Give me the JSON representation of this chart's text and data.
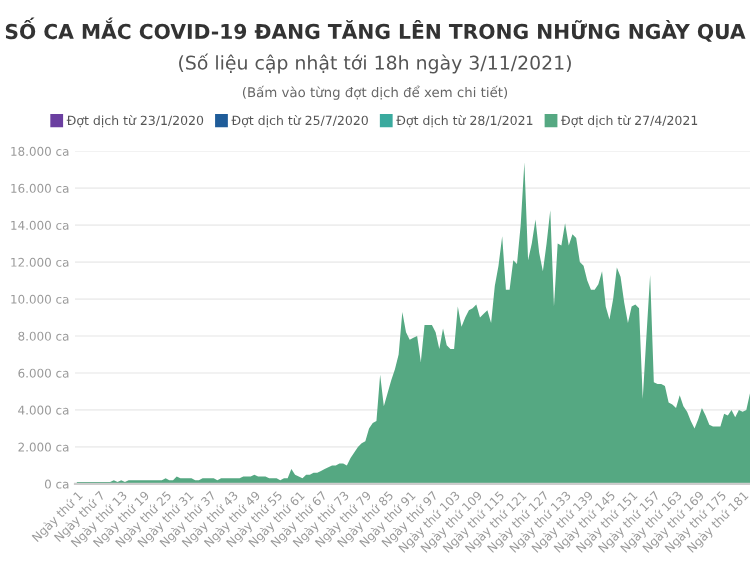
{
  "chart_data": {
    "type": "area",
    "title": "SỐ CA MẮC COVID-19 ĐANG TĂNG LÊN TRONG NHỮNG NGÀY QUA",
    "subtitle": "(Số liệu cập nhật tới 18h ngày 3/11/2021)",
    "annotations": [
      "(Bấm vào từng đợt dịch để xem chi tiết)"
    ],
    "categories": [
      "Ngày thứ 1",
      null,
      null,
      null,
      null,
      null,
      "Ngày thứ 7",
      null,
      null,
      null,
      null,
      null,
      "Ngày thứ 13",
      null,
      null,
      null,
      null,
      null,
      "Ngày thứ 19",
      null,
      null,
      null,
      null,
      null,
      "Ngày thứ 25",
      null,
      null,
      null,
      null,
      null,
      "Ngày thứ 31",
      null,
      null,
      null,
      null,
      null,
      "Ngày thứ 37",
      null,
      null,
      null,
      null,
      null,
      "Ngày thứ 43",
      null,
      null,
      null,
      null,
      null,
      "Ngày thứ 49",
      null,
      null,
      null,
      null,
      null,
      "Ngày thứ 55",
      null,
      null,
      null,
      null,
      null,
      "Ngày thứ 61",
      null,
      null,
      null,
      null,
      null,
      "Ngày thứ 67",
      null,
      null,
      null,
      null,
      null,
      "Ngày thứ 73",
      null,
      null,
      null,
      null,
      null,
      "Ngày thứ 79",
      null,
      null,
      null,
      null,
      null,
      "Ngày thứ 85",
      null,
      null,
      null,
      null,
      null,
      "Ngày thứ 91",
      null,
      null,
      null,
      null,
      null,
      "Ngày thứ 97",
      null,
      null,
      null,
      null,
      null,
      "Ngày thứ 103",
      null,
      null,
      null,
      null,
      null,
      "Ngày thứ 109",
      null,
      null,
      null,
      null,
      null,
      "Ngày thứ 115",
      null,
      null,
      null,
      null,
      null,
      "Ngày thứ 121",
      null,
      null,
      null,
      null,
      null,
      "Ngày thứ 127",
      null,
      null,
      null,
      null,
      null,
      "Ngày thứ 133",
      null,
      null,
      null,
      null,
      null,
      "Ngày thứ 139",
      null,
      null,
      null,
      null,
      null,
      "Ngày thứ 145",
      null,
      null,
      null,
      null,
      null,
      "Ngày thứ 151",
      null,
      null,
      null,
      null,
      null,
      "Ngày thứ 157",
      null,
      null,
      null,
      null,
      null,
      "Ngày thứ 163",
      null,
      null,
      null,
      null,
      null,
      "Ngày thứ 169",
      null,
      null,
      null,
      null,
      null,
      "Ngày thứ 175",
      null,
      null,
      null,
      null,
      null,
      "Ngày thứ 181",
      null,
      null
    ],
    "series": [
      {
        "name": "Đợt dịch từ 23/1/2020",
        "color": "#6b3fa0",
        "values": [
          null,
          null,
          null,
          null,
          null,
          null,
          null,
          null,
          null,
          null,
          null,
          null,
          null,
          null,
          null,
          null,
          null,
          null,
          null,
          null,
          null,
          null,
          null,
          null,
          null,
          null,
          null,
          null,
          null,
          null,
          null,
          null,
          null,
          null,
          null,
          null,
          null,
          null,
          null,
          null,
          null,
          null,
          null,
          null,
          null,
          null,
          null,
          null,
          null,
          null,
          null,
          null,
          null,
          null,
          null,
          null,
          null,
          null,
          null,
          null,
          null,
          null,
          null,
          null,
          null,
          null,
          null,
          null,
          null,
          null,
          null,
          null,
          null,
          null,
          null,
          null,
          null,
          null,
          null,
          null,
          null,
          null,
          null,
          null,
          null,
          null,
          null,
          null,
          null,
          null,
          null,
          null,
          null,
          null,
          null,
          null,
          null,
          null,
          null,
          null,
          null,
          null,
          null,
          null,
          null,
          null,
          null,
          null,
          null,
          null,
          null,
          null,
          null,
          null,
          null,
          null,
          null,
          null,
          null,
          null,
          null,
          null,
          null,
          null,
          null,
          null,
          null,
          null,
          null,
          null,
          null,
          null,
          null,
          null,
          null,
          null,
          null,
          null,
          null,
          null,
          null,
          null,
          null,
          null,
          null,
          null,
          null,
          null,
          null,
          null,
          null,
          null,
          null,
          null,
          null,
          null,
          null,
          null,
          null,
          null,
          null,
          null,
          null,
          null,
          null,
          null,
          null,
          null,
          null,
          null,
          null,
          null,
          null,
          null,
          null,
          null,
          null,
          null,
          null,
          null,
          null,
          null,
          null
        ]
      },
      {
        "name": "Đợt dịch từ 25/7/2020",
        "color": "#1f5c99",
        "values": [
          null,
          null,
          null,
          null,
          null,
          null,
          null,
          null,
          null,
          null,
          null,
          null,
          null,
          null,
          null,
          null,
          null,
          null,
          null,
          null,
          null,
          null,
          null,
          null,
          null,
          null,
          null,
          null,
          null,
          null,
          null,
          null,
          null,
          null,
          null,
          null,
          null,
          null,
          null,
          null,
          null,
          null,
          null,
          null,
          null,
          null,
          null,
          null,
          null,
          null,
          null,
          null,
          null,
          null,
          null,
          null,
          null,
          null,
          null,
          null,
          null,
          null,
          null,
          null,
          null,
          null,
          null,
          null,
          null,
          null,
          null,
          null,
          null,
          null,
          null,
          null,
          null,
          null,
          null,
          null,
          null,
          null,
          null,
          null,
          null,
          null,
          null,
          null,
          null,
          null,
          null,
          null,
          null,
          null,
          null,
          null,
          null,
          null,
          null,
          null,
          null,
          null,
          null,
          null,
          null,
          null,
          null,
          null,
          null,
          null,
          null,
          null,
          null,
          null,
          null,
          null,
          null,
          null,
          null,
          null,
          null,
          null,
          null,
          null,
          null,
          null,
          null,
          null,
          null,
          null,
          null,
          null,
          null,
          null,
          null,
          null,
          null,
          null,
          null,
          null,
          null,
          null,
          null,
          null,
          null,
          null,
          null,
          null,
          null,
          null,
          null,
          null,
          null,
          null,
          null,
          null,
          null,
          null,
          null,
          null,
          null,
          null,
          null,
          null,
          null,
          null,
          null,
          null,
          null,
          null,
          null,
          null,
          null,
          null,
          null,
          null,
          null,
          null,
          null,
          null,
          null,
          null,
          null
        ]
      },
      {
        "name": "Đợt dịch từ 28/1/2021",
        "color": "#3aaa9e",
        "values": [
          null,
          null,
          null,
          null,
          null,
          null,
          null,
          null,
          null,
          null,
          null,
          null,
          null,
          null,
          null,
          null,
          null,
          null,
          null,
          null,
          null,
          null,
          null,
          null,
          null,
          null,
          null,
          null,
          null,
          null,
          null,
          null,
          null,
          null,
          null,
          null,
          null,
          null,
          null,
          null,
          null,
          null,
          null,
          null,
          null,
          null,
          null,
          null,
          null,
          null,
          null,
          null,
          null,
          null,
          null,
          null,
          null,
          null,
          null,
          null,
          null,
          null,
          null,
          null,
          null,
          null,
          null,
          null,
          null,
          null,
          null,
          null,
          null,
          null,
          null,
          null,
          null,
          null,
          null,
          null,
          null,
          null,
          null,
          null,
          null,
          null,
          null,
          null,
          null,
          null,
          null,
          null,
          null,
          null,
          null,
          null,
          null,
          null,
          null,
          null,
          null,
          null,
          null,
          null,
          null,
          null,
          null,
          null,
          null,
          null,
          null,
          null,
          null,
          null,
          null,
          null,
          null,
          null,
          null,
          null,
          null,
          null,
          null,
          null,
          null,
          null,
          null,
          null,
          null,
          null,
          null,
          null,
          null,
          null,
          null,
          null,
          null,
          null,
          null,
          null,
          null,
          null,
          null,
          null,
          null,
          null,
          null,
          null,
          null,
          null,
          null,
          null,
          null,
          null,
          null,
          null,
          null,
          null,
          null,
          null,
          null,
          null,
          null,
          null,
          null,
          null,
          null,
          null,
          null,
          null,
          null,
          null,
          null,
          null,
          null,
          null,
          null,
          null,
          null,
          null,
          null,
          null,
          null
        ]
      },
      {
        "name": "Đợt dịch từ 27/4/2021",
        "color": "#55a882",
        "values": [
          100,
          100,
          100,
          100,
          100,
          100,
          100,
          100,
          100,
          100,
          200,
          100,
          200,
          100,
          200,
          200,
          200,
          200,
          200,
          200,
          200,
          200,
          200,
          200,
          300,
          200,
          200,
          400,
          300,
          300,
          300,
          300,
          200,
          200,
          300,
          300,
          300,
          300,
          200,
          300,
          300,
          300,
          300,
          300,
          300,
          400,
          400,
          400,
          500,
          400,
          400,
          400,
          300,
          300,
          300,
          200,
          300,
          300,
          800,
          500,
          400,
          300,
          500,
          500,
          600,
          600,
          700,
          800,
          900,
          1000,
          1000,
          1100,
          1100,
          1000,
          1400,
          1700,
          2000,
          2200,
          2300,
          3000,
          3300,
          3400,
          5900,
          4200,
          4900,
          5600,
          6200,
          7000,
          9300,
          8200,
          7800,
          7900,
          8000,
          6600,
          8600,
          8600,
          8600,
          8200,
          7300,
          8400,
          7500,
          7300,
          7300,
          9600,
          8500,
          9000,
          9400,
          9500,
          9700,
          9000,
          9200,
          9400,
          8700,
          10700,
          11800,
          13400,
          10500,
          10500,
          12100,
          11900,
          14000,
          17400,
          12100,
          13000,
          14300,
          12500,
          11500,
          13000,
          14800,
          9600,
          13000,
          12900,
          14100,
          12900,
          13500,
          13300,
          12000,
          11800,
          11000,
          10500,
          10500,
          10800,
          11500,
          9600,
          8900,
          10000,
          11700,
          11200,
          9800,
          8700,
          9600,
          9700,
          9500,
          4600,
          8000,
          11300,
          5500,
          5400,
          5400,
          5300,
          4400,
          4300,
          4100,
          4800,
          4200,
          3900,
          3400,
          3000,
          3500,
          4100,
          3700,
          3200,
          3100,
          3100,
          3100,
          3800,
          3700,
          4000,
          3600,
          4000,
          3900,
          4000,
          4900
        ]
      }
    ],
    "ylim": [
      0,
      18000
    ],
    "yticks": [
      {
        "value": 0,
        "label": "0 ca"
      },
      {
        "value": 2000,
        "label": "2.000 ca"
      },
      {
        "value": 4000,
        "label": "4.000 ca"
      },
      {
        "value": 6000,
        "label": "6.000 ca"
      },
      {
        "value": 8000,
        "label": "8.000 ca"
      },
      {
        "value": 10000,
        "label": "10.000 ca"
      },
      {
        "value": 12000,
        "label": "12.000 ca"
      },
      {
        "value": 14000,
        "label": "14.000 ca"
      },
      {
        "value": 16000,
        "label": "16.000 ca"
      },
      {
        "value": 18000,
        "label": "18.000 ca"
      }
    ],
    "grid": "y",
    "legend": "top"
  }
}
